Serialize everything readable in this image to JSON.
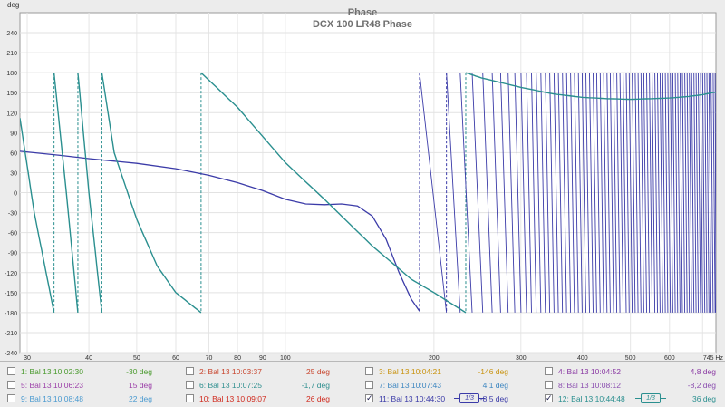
{
  "chart_data": {
    "type": "line",
    "title": "Phase",
    "subtitle": "DCX 100 LR48 Phase",
    "ylabel": "deg",
    "xunit": "Hz",
    "xscale": "log",
    "xlim": [
      29,
      745
    ],
    "ylim": [
      -240,
      270
    ],
    "grid": true,
    "xticks": [
      30,
      40,
      50,
      60,
      70,
      80,
      90,
      100,
      200,
      300,
      400,
      500,
      600,
      745
    ],
    "xtick_labels": [
      "30",
      "40",
      "50",
      "60",
      "70",
      "80",
      "90",
      "100",
      "200",
      "300",
      "400",
      "500",
      "600",
      "745 Hz"
    ],
    "yticks": [
      -240,
      -210,
      -180,
      -150,
      -120,
      -90,
      -60,
      -30,
      0,
      30,
      60,
      90,
      120,
      150,
      180,
      210,
      240
    ],
    "series": [
      {
        "name": "11: Bal 13 10:44:30",
        "color": "#3b3ba8",
        "description_values": "smooth low-frequency segment then rapidly wrapping phase",
        "x": [
          29,
          35,
          40,
          50,
          60,
          70,
          80,
          90,
          100,
          110,
          120,
          130,
          140,
          150,
          160,
          170,
          180,
          187
        ],
        "y": [
          62,
          56,
          51,
          44,
          36,
          26,
          15,
          3,
          -10,
          -17,
          -18,
          -17,
          -20,
          -35,
          -70,
          -120,
          -160,
          -178
        ],
        "wrap": {
          "start": 187,
          "start_hz_first": 187,
          "segments_to": 745,
          "bottom": -180,
          "top": 180,
          "initial_period_hz": 30,
          "final_period_hz": 7
        }
      },
      {
        "name": "12: Bal 13 10:44:48",
        "color": "#2a8f8f",
        "segments": [
          {
            "x": [
              29,
              31,
              34
            ],
            "y": [
              112,
              -30,
              -180
            ]
          },
          {
            "x": [
              34,
              36,
              38
            ],
            "y": [
              180,
              0,
              -180
            ]
          },
          {
            "x": [
              38,
              40,
              42.5
            ],
            "y": [
              180,
              0,
              -180
            ]
          },
          {
            "x": [
              42.5,
              45,
              50,
              55,
              60,
              67.5
            ],
            "y": [
              180,
              60,
              -40,
              -110,
              -150,
              -180
            ]
          },
          {
            "x": [
              67.5,
              80,
              100,
              120,
              150,
              180,
              200,
              232
            ],
            "y": [
              180,
              128,
              45,
              -10,
              -80,
              -130,
              -150,
              -180
            ]
          },
          {
            "x": [
              232,
              250,
              300,
              350,
              400,
              450,
              500,
              550,
              600,
              650,
              700,
              745
            ],
            "y": [
              180,
              172,
              158,
              148,
              143,
              141,
              140,
              141,
              142,
              144,
              147,
              151
            ]
          }
        ]
      }
    ],
    "dashed_verticals_x": [
      34,
      38,
      42.5,
      67.5,
      187,
      212,
      232
    ]
  },
  "legend": [
    [
      {
        "label": "1: Bal 13 10:02:30",
        "value": "-30 deg",
        "color": "#4a9a2e",
        "checked": false
      },
      {
        "label": "2: Bal 13 10:03:37",
        "value": "25 deg",
        "color": "#c8462e",
        "checked": false
      },
      {
        "label": "3: Bal 13 10:04:21",
        "value": "-146 deg",
        "color": "#c9930f",
        "checked": false
      },
      {
        "label": "4: Bal 13 10:04:52",
        "value": "4,8 deg",
        "color": "#8a3aa3",
        "checked": false
      }
    ],
    [
      {
        "label": "5: Bal 13 10:06:23",
        "value": "15 deg",
        "color": "#9b3fa8",
        "checked": false
      },
      {
        "label": "6: Bal 13 10:07:25",
        "value": "-1,7 deg",
        "color": "#2f8f8f",
        "checked": false
      },
      {
        "label": "7: Bal 13 10:07:43",
        "value": "4,1 deg",
        "color": "#3d86c0",
        "checked": false
      },
      {
        "label": "8: Bal 13 10:08:12",
        "value": "-8,2 deg",
        "color": "#8b4fb0",
        "checked": false
      }
    ],
    [
      {
        "label": "9: Bal 13 10:08:48",
        "value": "22 deg",
        "color": "#4a9ad0",
        "checked": false
      },
      {
        "label": "10: Bal 13 10:09:07",
        "value": "26 deg",
        "color": "#d02a1e",
        "checked": false
      },
      {
        "label": "11: Bal 13 10:44:30",
        "value": "-8,5 deg",
        "color": "#3b3ba8",
        "checked": true,
        "smoothing": "1/3"
      },
      {
        "label": "12: Bal 13 10:44:48",
        "value": "36 deg",
        "color": "#2a8f8f",
        "checked": true,
        "smoothing": "1/3"
      }
    ]
  ]
}
